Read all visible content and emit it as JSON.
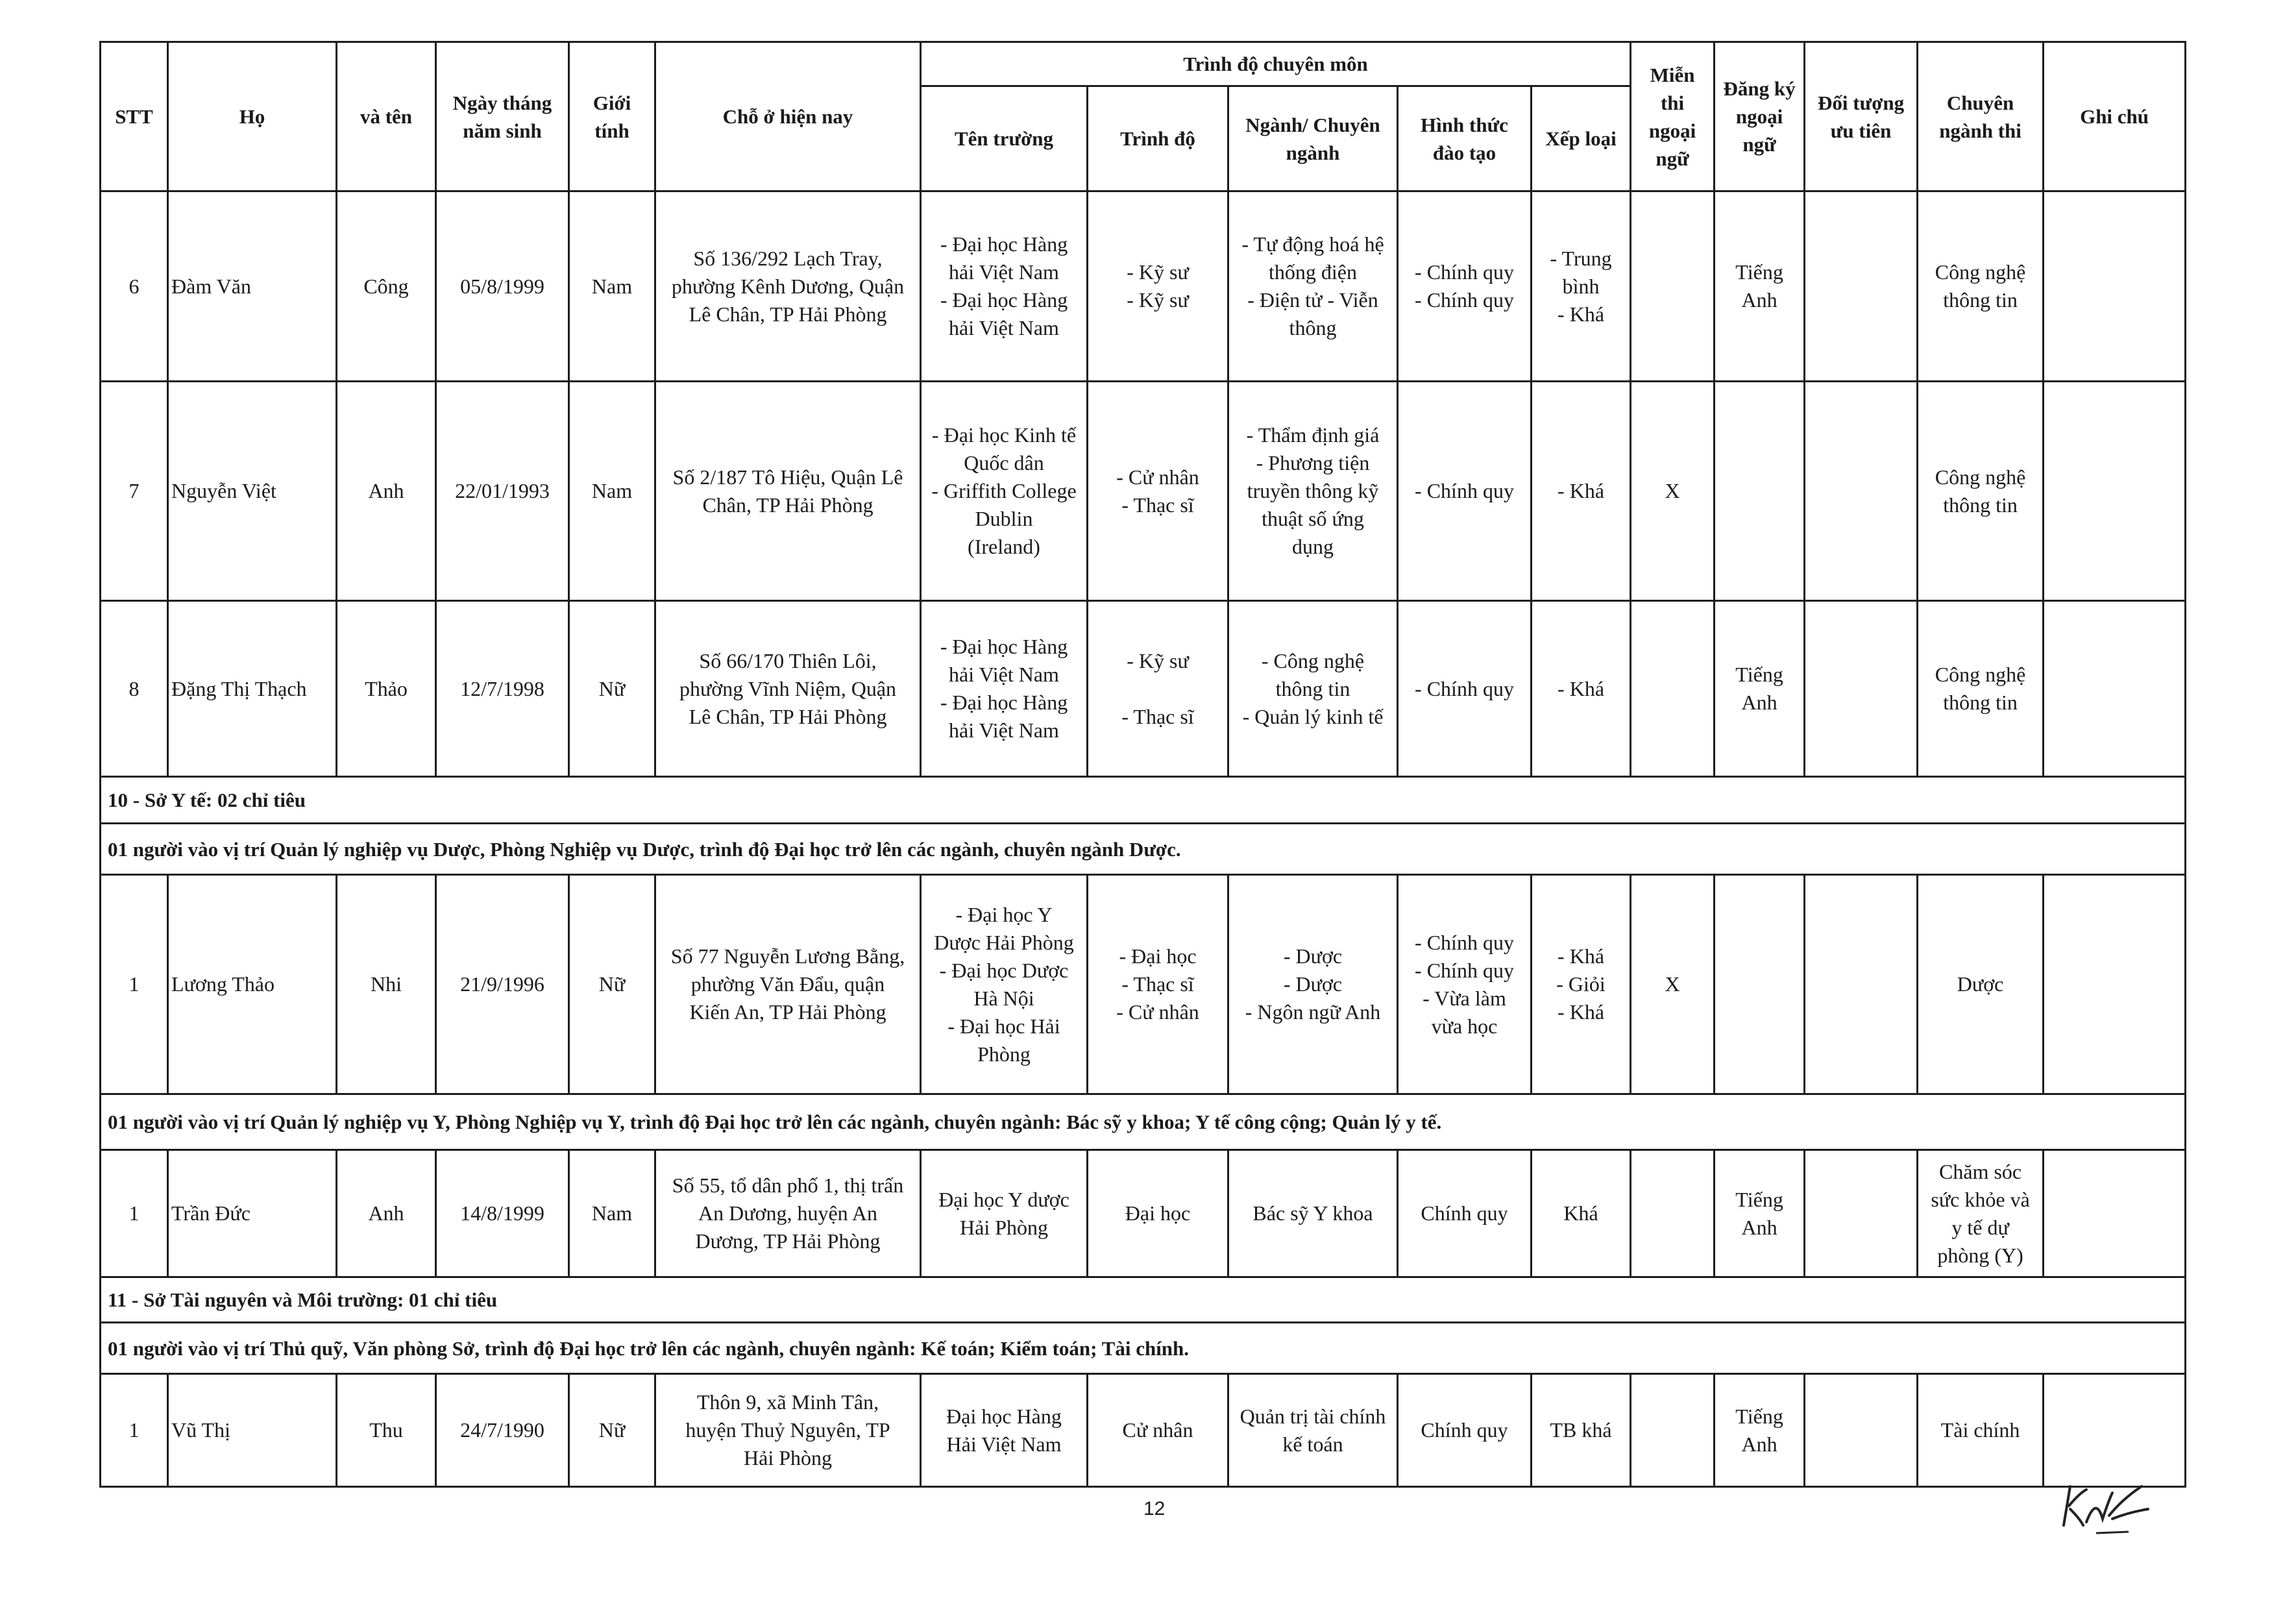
{
  "header": {
    "stt": "STT",
    "ho": "Họ",
    "va_ten": "và tên",
    "ngay_sinh": "Ngày tháng\nnăm sinh",
    "gioi_tinh": "Giới\ntính",
    "cho_o": "Chỗ ở hiện nay",
    "trinh_do_chuyen_mon": "Trình độ chuyên môn",
    "ten_truong": "Tên trường",
    "trinh_do": "Trình độ",
    "nganh": "Ngành/ Chuyên\nngành",
    "hinh_thuc": "Hình thức\nđào tạo",
    "xep_loai": "Xếp loại",
    "mien_thi": "Miễn\nthi\nngoại\nngữ",
    "dang_ky": "Đăng ký\nngoại\nngữ",
    "doi_tuong": "Đối tượng\nưu tiên",
    "chuyen_nganh_thi": "Chuyên\nngành thi",
    "ghi_chu": "Ghi chú"
  },
  "body": [
    {
      "type": "row",
      "cells": [
        "6",
        "Đàm Văn",
        "Công",
        "05/8/1999",
        "Nam",
        "Số 136/292 Lạch Tray,\nphường Kênh Dương, Quận\nLê Chân, TP Hải Phòng",
        "- Đại học Hàng\nhải Việt Nam\n- Đại học Hàng\nhải Việt Nam",
        "- Kỹ sư\n- Kỹ sư",
        "- Tự động hoá hệ\nthống điện\n- Điện tử - Viễn\nthông",
        "- Chính quy\n- Chính quy",
        "- Trung\nbình\n- Khá",
        "",
        "Tiếng\nAnh",
        "",
        "Công nghệ\nthông tin",
        ""
      ]
    },
    {
      "type": "row",
      "cells": [
        "7",
        "Nguyễn Việt",
        "Anh",
        "22/01/1993",
        "Nam",
        "Số 2/187 Tô Hiệu, Quận Lê\nChân, TP Hải Phòng",
        "- Đại học Kinh tế\nQuốc dân\n- Griffith College\nDublin\n(Ireland)",
        "- Cử nhân\n- Thạc sĩ",
        "- Thẩm định giá\n- Phương tiện\ntruyền thông kỹ\nthuật số ứng\ndụng",
        "- Chính quy",
        "- Khá",
        "X",
        "",
        "",
        "Công nghệ\nthông tin",
        ""
      ]
    },
    {
      "type": "row",
      "cells": [
        "8",
        "Đặng Thị Thạch",
        "Thảo",
        "12/7/1998",
        "Nữ",
        "Số 66/170 Thiên Lôi,\nphường Vĩnh Niệm, Quận\nLê Chân, TP Hải Phòng",
        "- Đại học Hàng\nhải Việt Nam\n- Đại học Hàng\nhải Việt Nam",
        "- Kỹ sư\n\n- Thạc sĩ",
        "- Công nghệ\nthông tin\n- Quản lý kinh tế",
        "- Chính quy",
        "- Khá",
        "",
        "Tiếng\nAnh",
        "",
        "Công nghệ\nthông tin",
        ""
      ]
    },
    {
      "type": "section",
      "text": "10 - Sở Y tế: 02 chỉ tiêu"
    },
    {
      "type": "section",
      "text": "01 người vào vị trí Quản lý nghiệp vụ Dược, Phòng Nghiệp vụ Dược, trình độ Đại học trở lên các ngành, chuyên ngành Dược."
    },
    {
      "type": "row",
      "cells": [
        "1",
        "Lương Thảo",
        "Nhi",
        "21/9/1996",
        "Nữ",
        "Số 77 Nguyễn Lương Bằng,\nphường Văn Đẩu, quận\nKiến An, TP Hải Phòng",
        "- Đại học Y\nDược Hải Phòng\n- Đại học Dược\nHà Nội\n- Đại học Hải\nPhòng",
        "- Đại học\n- Thạc sĩ\n- Cử nhân",
        "- Dược\n- Dược\n- Ngôn ngữ Anh",
        "- Chính quy\n- Chính quy\n- Vừa làm\nvừa học",
        "- Khá\n- Giỏi\n- Khá",
        "X",
        "",
        "",
        "Dược",
        ""
      ]
    },
    {
      "type": "section",
      "text": "01 người vào vị trí Quản lý nghiệp vụ Y, Phòng Nghiệp vụ Y, trình độ Đại học trở lên các ngành, chuyên ngành: Bác sỹ y khoa; Y tế công cộng; Quản lý y tế."
    },
    {
      "type": "row",
      "cells": [
        "1",
        "Trần Đức",
        "Anh",
        "14/8/1999",
        "Nam",
        "Số 55, tổ dân phố 1, thị trấn\nAn Dương, huyện An\nDương, TP Hải Phòng",
        "Đại học Y dược\nHải Phòng",
        "Đại học",
        "Bác sỹ Y khoa",
        "Chính quy",
        "Khá",
        "",
        "Tiếng\nAnh",
        "",
        "Chăm sóc\nsức khỏe và\ny tế dự\nphòng (Y)",
        ""
      ]
    },
    {
      "type": "section",
      "text": "11 - Sở Tài nguyên và Môi trường: 01 chỉ tiêu"
    },
    {
      "type": "section",
      "text": "01 người vào vị trí Thủ quỹ, Văn phòng Sở, trình độ Đại học trở lên các ngành, chuyên ngành: Kế toán; Kiểm toán; Tài chính."
    },
    {
      "type": "row",
      "cells": [
        "1",
        "Vũ Thị",
        "Thu",
        "24/7/1990",
        "Nữ",
        "Thôn 9, xã Minh Tân,\nhuyện Thuỷ Nguyên, TP\nHải Phòng",
        "Đại học Hàng\nHải Việt Nam",
        "Cử nhân",
        "Quản trị tài chính\nkế toán",
        "Chính quy",
        "TB khá",
        "",
        "Tiếng\nAnh",
        "",
        "Tài chính",
        ""
      ]
    }
  ],
  "page_number": "12",
  "signature_text": "KAL"
}
